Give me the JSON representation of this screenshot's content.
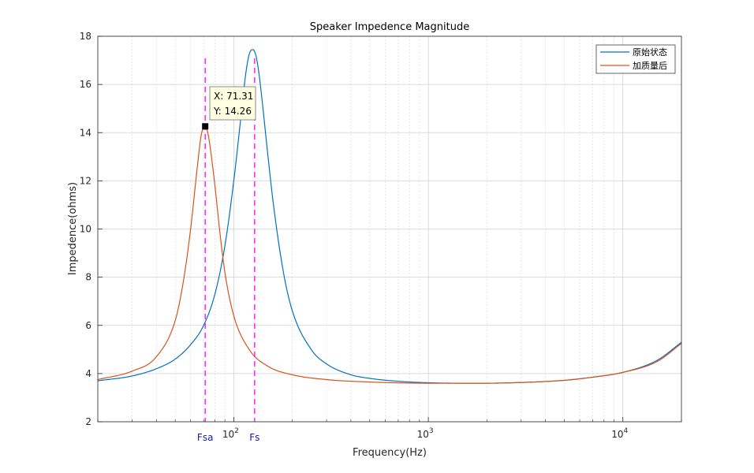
{
  "chart_data": {
    "type": "line",
    "title": "Speaker Impedence Magnitude",
    "xlabel": "Frequency(Hz)",
    "ylabel": "Impedence(ohms)",
    "x_scale": "log",
    "xlim": [
      20,
      20000
    ],
    "ylim": [
      2,
      18
    ],
    "y_ticks": [
      2,
      4,
      6,
      8,
      10,
      12,
      14,
      16,
      18
    ],
    "x_tick_labels": [
      {
        "value": 100,
        "base": "10",
        "exp": "2"
      },
      {
        "value": 1000,
        "base": "10",
        "exp": "3"
      },
      {
        "value": 10000,
        "base": "10",
        "exp": "4"
      }
    ],
    "grid": true,
    "minor_grid": true,
    "legend_position": "top-right",
    "series": [
      {
        "name": "原始状态",
        "color": "#0072BD",
        "x": [
          20,
          30,
          40,
          50,
          60,
          70,
          80,
          90,
          100,
          110,
          115,
          120,
          125,
          130,
          135,
          140,
          150,
          160,
          180,
          200,
          250,
          300,
          400,
          500,
          700,
          1000,
          1500,
          2000,
          3000,
          5000,
          7000,
          10000,
          15000,
          20000
        ],
        "y": [
          3.7,
          3.9,
          4.2,
          4.6,
          5.2,
          6.0,
          7.3,
          9.3,
          12.0,
          15.0,
          16.4,
          17.25,
          17.45,
          17.2,
          16.4,
          15.3,
          13.0,
          11.0,
          8.2,
          6.6,
          5.0,
          4.4,
          3.95,
          3.8,
          3.68,
          3.62,
          3.6,
          3.6,
          3.63,
          3.72,
          3.85,
          4.05,
          4.55,
          5.3
        ]
      },
      {
        "name": "加质量后",
        "color": "#D95319",
        "x": [
          20,
          30,
          40,
          50,
          55,
          60,
          65,
          68,
          70,
          71.31,
          73,
          75,
          80,
          85,
          90,
          100,
          120,
          150,
          200,
          300,
          500,
          1000,
          2000,
          3000,
          5000,
          7000,
          10000,
          15000,
          20000
        ],
        "y": [
          3.75,
          4.1,
          4.7,
          6.2,
          7.8,
          10.0,
          12.6,
          13.9,
          14.22,
          14.26,
          14.1,
          13.6,
          11.8,
          9.8,
          8.2,
          6.4,
          5.0,
          4.3,
          3.95,
          3.75,
          3.65,
          3.6,
          3.6,
          3.63,
          3.72,
          3.85,
          4.05,
          4.5,
          5.25
        ]
      }
    ],
    "markers": [
      {
        "label": "Fsa",
        "x": 71.31,
        "color": "#FF00FF"
      },
      {
        "label": "Fs",
        "x": 128,
        "color": "#FF00FF"
      }
    ],
    "datatip": {
      "x": 71.31,
      "y": 14.26,
      "x_text": "X: 71.31",
      "y_text": "Y: 14.26"
    }
  }
}
